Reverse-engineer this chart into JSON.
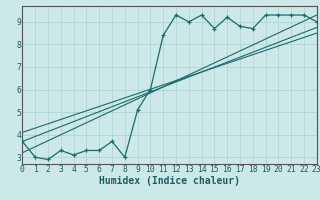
{
  "title": "",
  "xlabel": "Humidex (Indice chaleur)",
  "ylabel": "",
  "bg_color": "#cce8e8",
  "line_color": "#1a6b6b",
  "grid_color": "#b0d4d4",
  "x_data": [
    0,
    1,
    2,
    3,
    4,
    5,
    6,
    7,
    8,
    9,
    10,
    11,
    12,
    13,
    14,
    15,
    16,
    17,
    18,
    19,
    20,
    21,
    22,
    23
  ],
  "y_main": [
    3.7,
    3.0,
    2.9,
    3.3,
    3.1,
    3.3,
    3.3,
    3.7,
    3.0,
    5.1,
    6.0,
    8.4,
    9.3,
    9.0,
    9.3,
    8.7,
    9.2,
    8.8,
    8.7,
    9.3,
    9.3,
    9.3,
    9.3,
    9.0
  ],
  "y_line1_x": [
    0,
    23
  ],
  "y_line1_y": [
    3.2,
    9.3
  ],
  "y_line2_x": [
    0,
    23
  ],
  "y_line2_y": [
    3.7,
    8.75
  ],
  "y_line3_x": [
    0,
    23
  ],
  "y_line3_y": [
    4.1,
    8.5
  ],
  "xlim": [
    0,
    23
  ],
  "ylim": [
    2.7,
    9.7
  ],
  "xticks": [
    0,
    1,
    2,
    3,
    4,
    5,
    6,
    7,
    8,
    9,
    10,
    11,
    12,
    13,
    14,
    15,
    16,
    17,
    18,
    19,
    20,
    21,
    22,
    23
  ],
  "yticks": [
    3,
    4,
    5,
    6,
    7,
    8,
    9
  ],
  "tick_fontsize": 5.8,
  "xlabel_fontsize": 7.0
}
